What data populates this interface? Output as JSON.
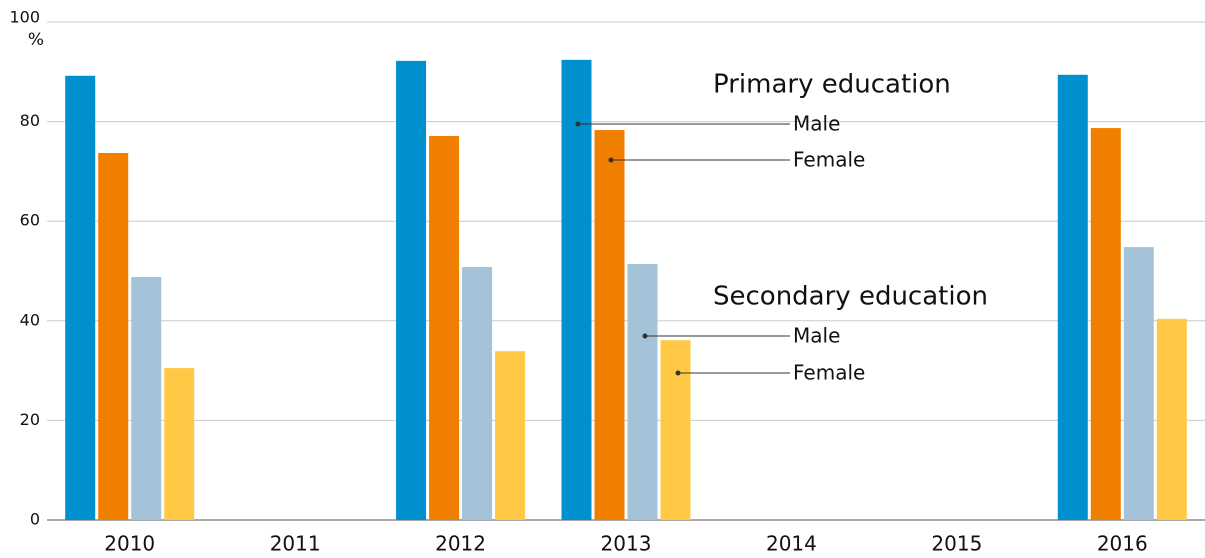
{
  "chart_data": {
    "type": "bar",
    "y_label": "%",
    "categories": [
      "2010",
      "2011",
      "2012",
      "2013",
      "2014",
      "2015",
      "2016"
    ],
    "legend_titles": [
      "Primary education",
      "Secondary education"
    ],
    "series": [
      {
        "name": "Male",
        "color": "#0090cf",
        "values": [
          89.2,
          null,
          92.2,
          92.4,
          null,
          null,
          89.4
        ]
      },
      {
        "name": "Female",
        "color": "#f07f00",
        "values": [
          73.7,
          null,
          77.1,
          78.3,
          null,
          null,
          78.7
        ]
      },
      {
        "name": "Male",
        "color": "#a4c3d8",
        "values": [
          48.8,
          null,
          50.8,
          51.4,
          null,
          null,
          54.8
        ]
      },
      {
        "name": "Female",
        "color": "#ffc845",
        "values": [
          30.5,
          null,
          33.9,
          36.1,
          null,
          null,
          40.4
        ]
      }
    ],
    "ylim": [
      0,
      100
    ],
    "yticks": [
      0,
      20,
      40,
      60,
      80,
      100
    ],
    "grid": true
  }
}
